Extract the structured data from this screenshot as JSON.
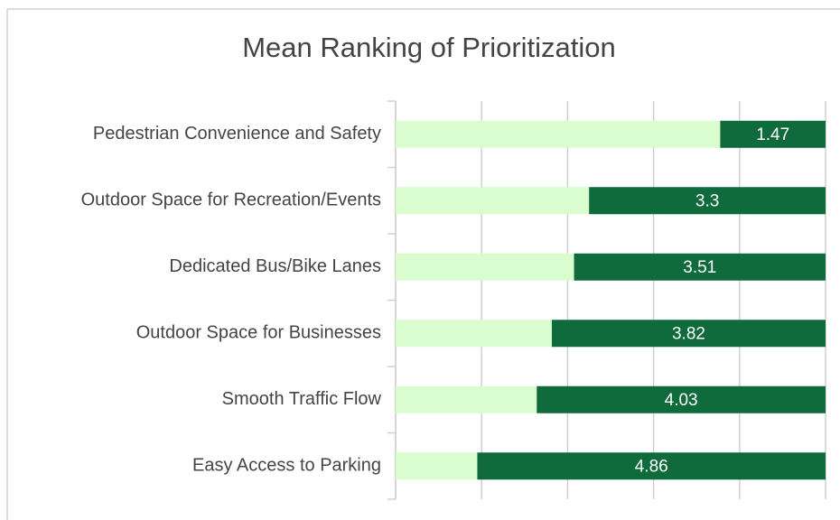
{
  "chart_data": {
    "type": "stacked-bar",
    "orientation": "horizontal",
    "title": "Mean Ranking of Prioritization",
    "categories": [
      "Pedestrian Convenience and Safety",
      "Outdoor Space for Recreation/Events",
      "Dedicated Bus/Bike Lanes",
      "Outdoor Space for Businesses",
      "Smooth Traffic Flow",
      "Easy Access to Parking"
    ],
    "series": [
      {
        "color": "#dafdd0",
        "values": [
          4.53,
          2.7,
          2.49,
          2.18,
          1.97,
          1.14
        ]
      },
      {
        "color": "#0f6b3b",
        "values": [
          1.47,
          3.3,
          3.51,
          3.82,
          4.03,
          4.86
        ],
        "data_labels": true
      }
    ],
    "xlim": [
      0,
      6
    ],
    "xticks": [
      0,
      1.2,
      2.4,
      3.6,
      4.8,
      6
    ],
    "grid": true
  }
}
